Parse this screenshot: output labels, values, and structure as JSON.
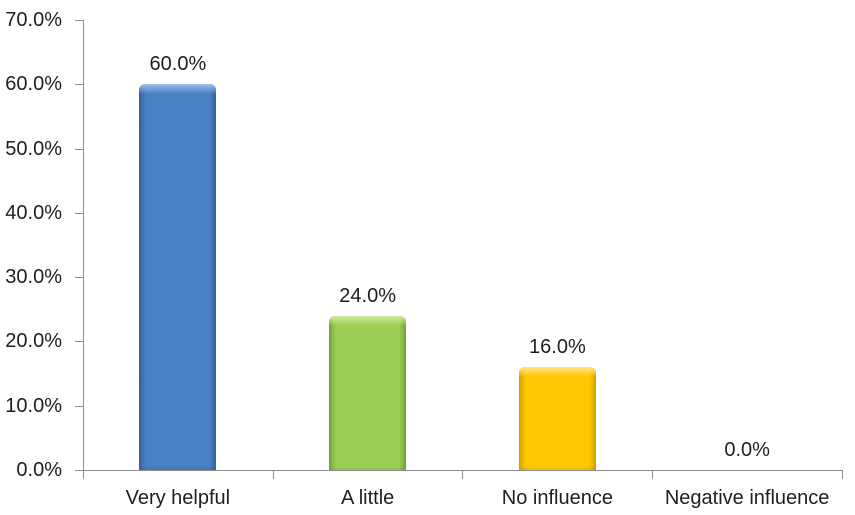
{
  "chart_data": {
    "type": "bar",
    "categories": [
      "Very helpful",
      "A little",
      "No influence",
      "Negative influence"
    ],
    "values": [
      60.0,
      24.0,
      16.0,
      0.0
    ],
    "value_labels": [
      "60.0%",
      "24.0%",
      "16.0%",
      "0.0%"
    ],
    "unit": "%",
    "ylim": [
      0,
      70
    ],
    "y_tick_step": 10,
    "y_ticks": [
      "70.0%",
      "60.0%",
      "50.0%",
      "40.0%",
      "30.0%",
      "20.0%",
      "10.0%",
      "0.0%"
    ],
    "grid": false,
    "legend": false,
    "bar_colors": [
      {
        "name": "blue",
        "base": "#4A81C2",
        "light": "#9DBFE8",
        "dark": "#3463A0"
      },
      {
        "name": "green",
        "base": "#9CCE55",
        "light": "#CDEA9F",
        "dark": "#74A637"
      },
      {
        "name": "gold",
        "base": "#FFC702",
        "light": "#FFE482",
        "dark": "#D6A500"
      }
    ],
    "axis_color": "#8E8E8E",
    "text_color": "#1F1F1F",
    "background": "#FFFFFF"
  }
}
